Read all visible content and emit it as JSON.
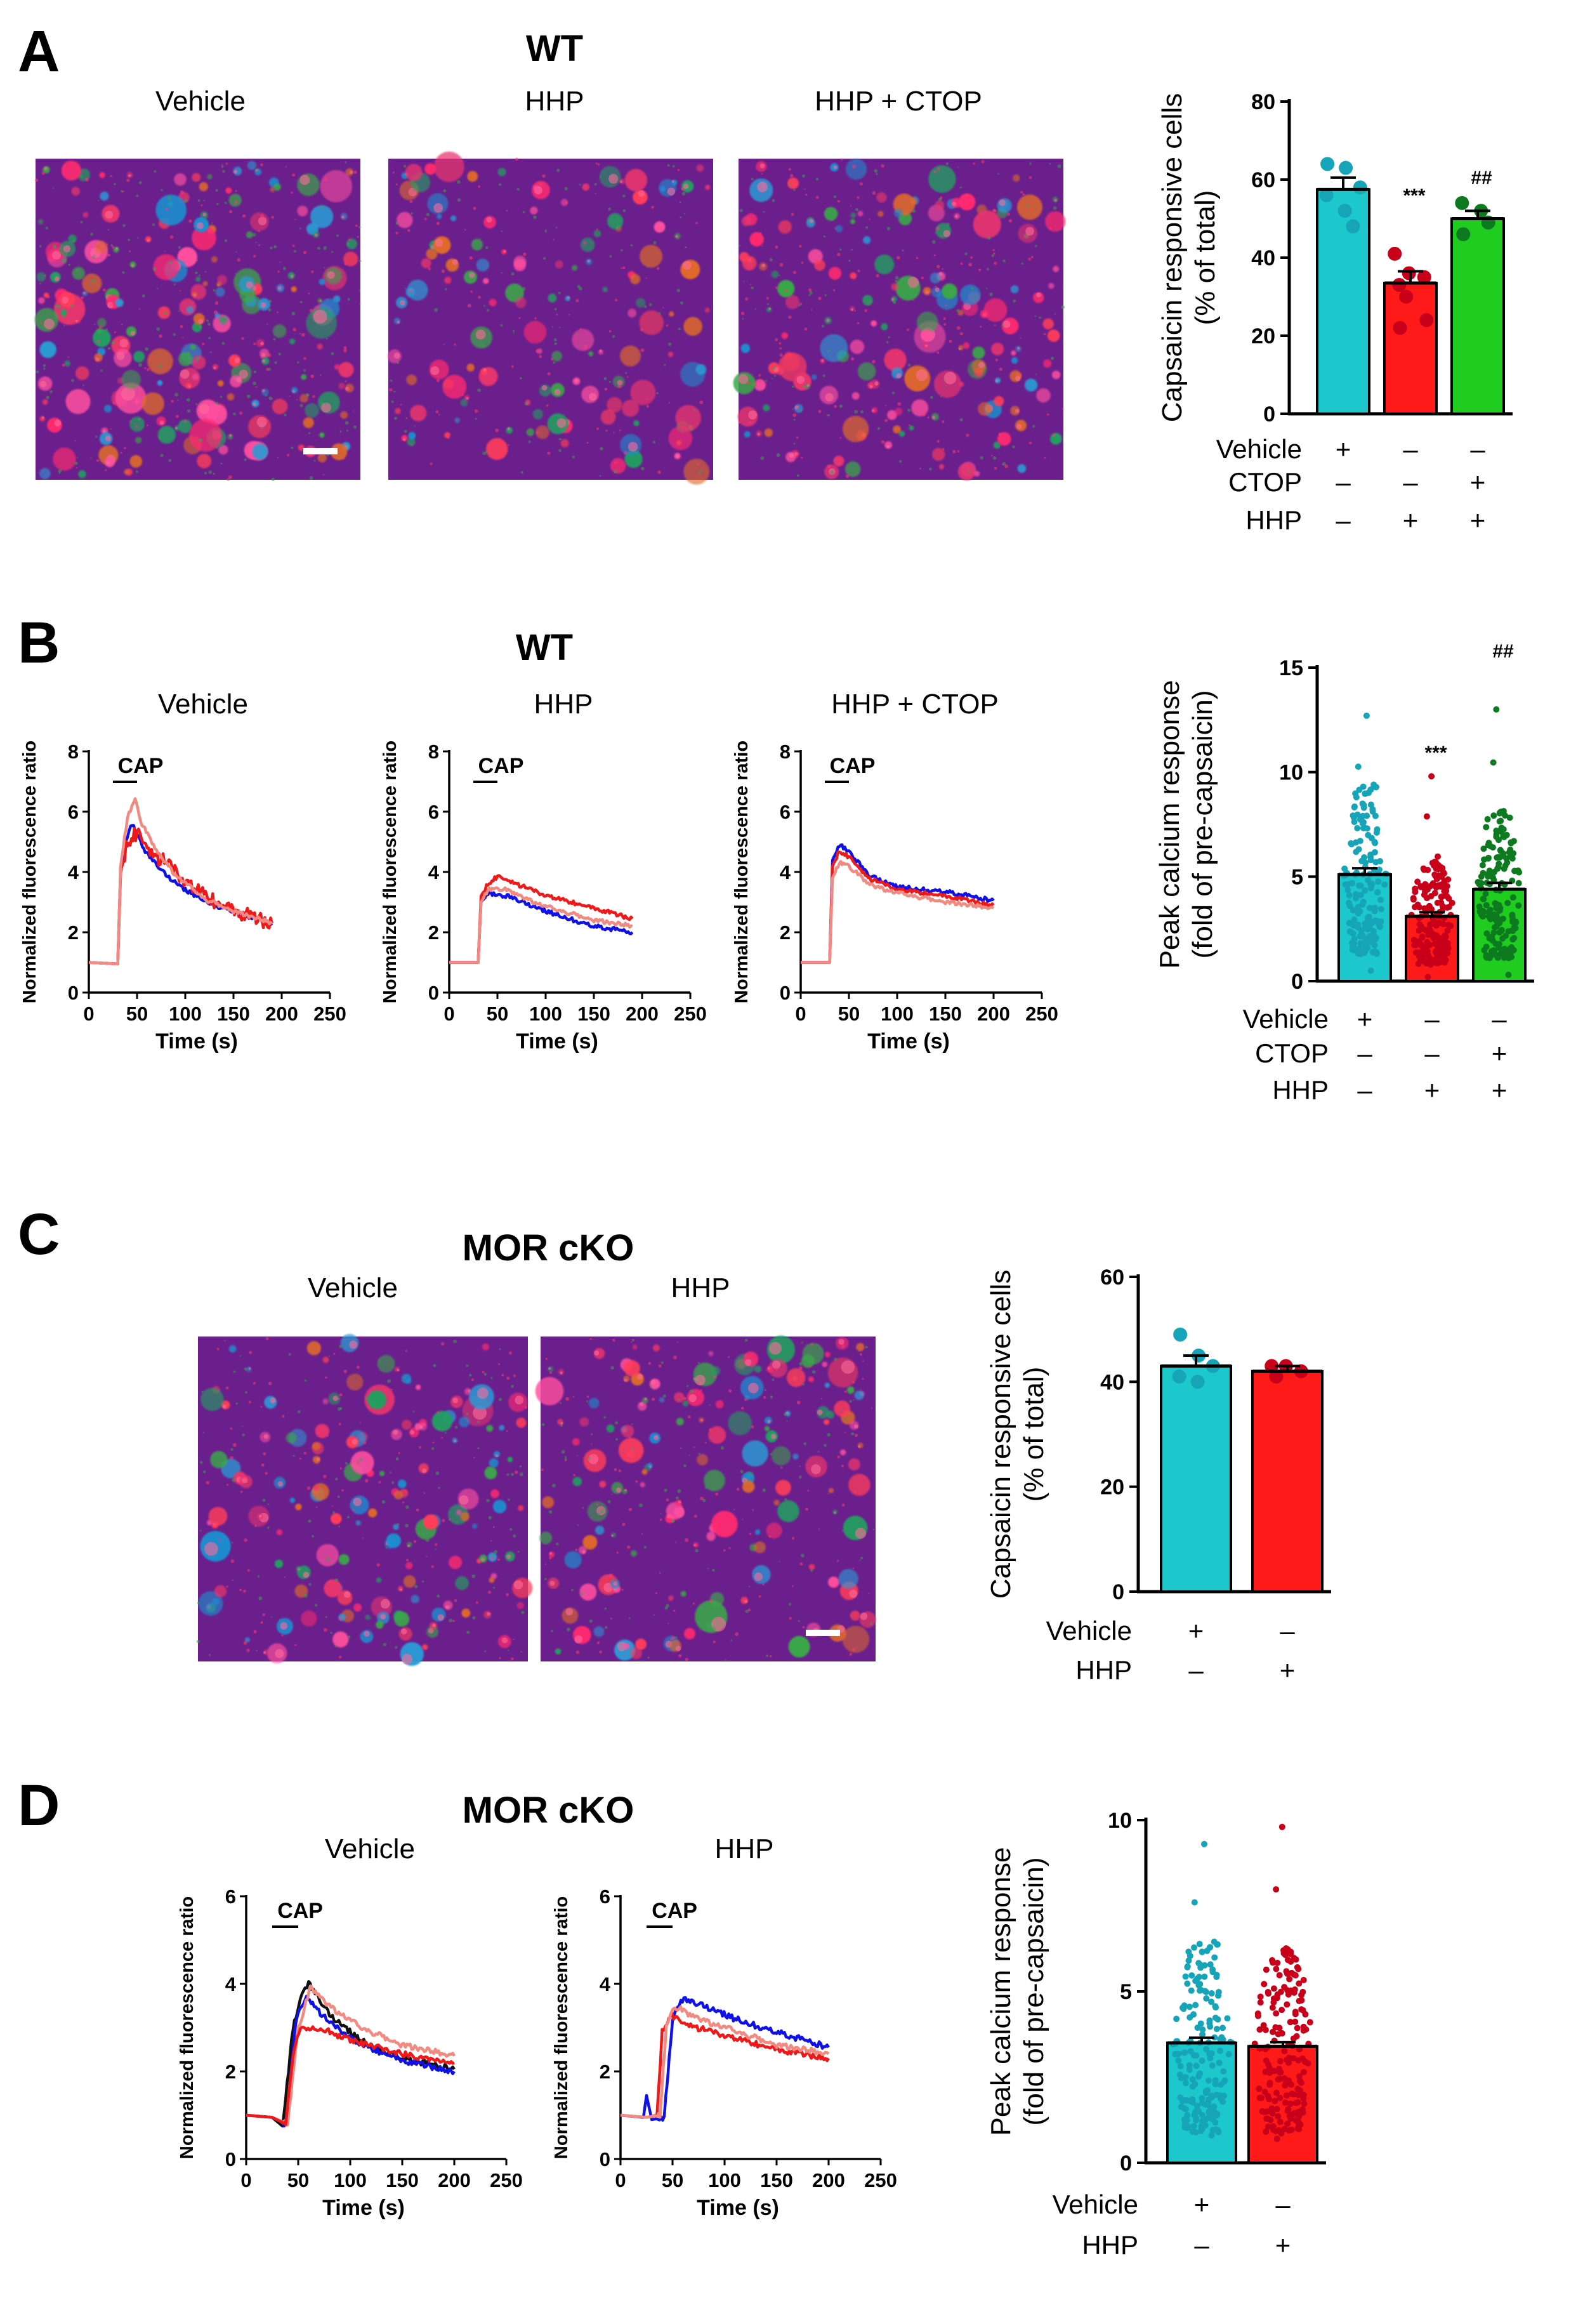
{
  "colors": {
    "vehicle": "#1cc8cc",
    "vehicle_dot": "#16a4b8",
    "hhp": "#ff1a1a",
    "hhp_dot": "#c8001a",
    "ctop": "#1fcc1f",
    "ctop_dot": "#0d7a1f",
    "blue_trace": "#1010e8",
    "red_trace": "#f01818",
    "pink_trace": "#f28a82",
    "black_trace": "#111111",
    "micro_bg": "#6a1f8c"
  },
  "panels": {
    "A": {
      "label": "A",
      "title": "WT",
      "images": [
        {
          "caption": "Vehicle",
          "scale_bar": true
        },
        {
          "caption": "HHP",
          "scale_bar": false
        },
        {
          "caption": "HHP + CTOP",
          "scale_bar": false
        }
      ],
      "chart": {
        "ylabel_line1": "Capsaicin responsive cells",
        "ylabel_line2": "(% of total)",
        "yticks": [
          "0",
          "20",
          "40",
          "60",
          "80"
        ],
        "row_labels": [
          "Vehicle",
          "CTOP",
          "HHP"
        ],
        "signs": [
          [
            "+",
            "–",
            "–"
          ],
          [
            "–",
            "–",
            "+"
          ],
          [
            "–",
            "+",
            "+"
          ]
        ],
        "sig_marks": [
          "",
          "***",
          "##"
        ]
      }
    },
    "B": {
      "label": "B",
      "title": "WT",
      "traces": [
        {
          "caption": "Vehicle",
          "cap_label": "CAP"
        },
        {
          "caption": "HHP",
          "cap_label": "CAP"
        },
        {
          "caption": "HHP + CTOP",
          "cap_label": "CAP"
        }
      ],
      "trace_ylabel": "Normalized fluorescence ratio",
      "trace_xlabel": "Time (s)",
      "trace_yticks": [
        "0",
        "2",
        "4",
        "6",
        "8"
      ],
      "trace_xticks": [
        "0",
        "50",
        "100",
        "150",
        "200",
        "250"
      ],
      "chart": {
        "ylabel_line1": "Peak calcium response",
        "ylabel_line2": "(fold of pre-capsaicin)",
        "yticks": [
          "0",
          "5",
          "10",
          "15"
        ],
        "row_labels": [
          "Vehicle",
          "CTOP",
          "HHP"
        ],
        "signs": [
          [
            "+",
            "–",
            "–"
          ],
          [
            "–",
            "–",
            "+"
          ],
          [
            "–",
            "+",
            "+"
          ]
        ],
        "sig_marks": [
          "",
          "***",
          "##"
        ]
      }
    },
    "C": {
      "label": "C",
      "title": "MOR cKO",
      "images": [
        {
          "caption": "Vehicle",
          "scale_bar": false
        },
        {
          "caption": "HHP",
          "scale_bar": true
        }
      ],
      "chart": {
        "ylabel_line1": "Capsaicin responsive cells",
        "ylabel_line2": "(% of total)",
        "yticks": [
          "0",
          "20",
          "40",
          "60"
        ],
        "row_labels": [
          "Vehicle",
          "HHP"
        ],
        "signs": [
          [
            "+",
            "–"
          ],
          [
            "–",
            "+"
          ]
        ]
      }
    },
    "D": {
      "label": "D",
      "title": "MOR cKO",
      "traces": [
        {
          "caption": "Vehicle",
          "cap_label": "CAP"
        },
        {
          "caption": "HHP",
          "cap_label": "CAP"
        }
      ],
      "trace_ylabel": "Normalized fluorescence ratio",
      "trace_xlabel": "Time (s)",
      "trace_yticks": [
        "0",
        "2",
        "4",
        "6"
      ],
      "trace_xticks": [
        "0",
        "50",
        "100",
        "150",
        "200",
        "250"
      ],
      "chart": {
        "ylabel_line1": "Peak calcium response",
        "ylabel_line2": "(fold of pre-capsaicin)",
        "yticks": [
          "0",
          "5",
          "10"
        ],
        "row_labels": [
          "Vehicle",
          "HHP"
        ],
        "signs": [
          [
            "+",
            "–"
          ],
          [
            "–",
            "+"
          ]
        ]
      }
    }
  },
  "chart_data": [
    {
      "type": "bar",
      "id": "A-bar",
      "title": "",
      "ylabel": "Capsaicin responsive cells (% of total)",
      "ylim": [
        0,
        80
      ],
      "categories": [
        "Vehicle",
        "HHP",
        "HHP + CTOP"
      ],
      "values": [
        57.5,
        33.5,
        50
      ],
      "errors": [
        3,
        3,
        2
      ],
      "points": [
        [
          64,
          63,
          58,
          56,
          52,
          48
        ],
        [
          41,
          36,
          35,
          33,
          30,
          24,
          22
        ],
        [
          54,
          52,
          49,
          46
        ]
      ]
    },
    {
      "type": "line",
      "id": "B-trace-vehicle",
      "xlabel": "Time (s)",
      "ylabel": "Normalized fluorescence ratio",
      "xlim": [
        0,
        250
      ],
      "ylim": [
        0,
        8
      ],
      "series": [
        {
          "name": "blue",
          "points": [
            [
              0,
              1
            ],
            [
              30,
              0.95
            ],
            [
              33,
              4.2
            ],
            [
              40,
              5.2
            ],
            [
              45,
              5.6
            ],
            [
              60,
              4.6
            ],
            [
              80,
              3.9
            ],
            [
              100,
              3.4
            ],
            [
              130,
              2.9
            ],
            [
              160,
              2.6
            ],
            [
              190,
              2.3
            ]
          ]
        },
        {
          "name": "red",
          "points": [
            [
              0,
              1
            ],
            [
              30,
              0.95
            ],
            [
              33,
              4.0
            ],
            [
              40,
              5.0
            ],
            [
              50,
              5.3
            ],
            [
              65,
              4.6
            ],
            [
              80,
              4.3
            ],
            [
              100,
              3.6
            ],
            [
              130,
              3.0
            ],
            [
              160,
              2.6
            ],
            [
              190,
              2.3
            ]
          ]
        },
        {
          "name": "pink",
          "points": [
            [
              0,
              1
            ],
            [
              30,
              0.95
            ],
            [
              33,
              4.2
            ],
            [
              40,
              5.8
            ],
            [
              48,
              6.4
            ],
            [
              55,
              5.6
            ],
            [
              70,
              4.7
            ],
            [
              90,
              3.9
            ],
            [
              120,
              3.1
            ],
            [
              150,
              2.7
            ],
            [
              190,
              2.3
            ]
          ]
        }
      ]
    },
    {
      "type": "line",
      "id": "B-trace-hhp",
      "xlabel": "Time (s)",
      "ylabel": "Normalized fluorescence ratio",
      "xlim": [
        0,
        250
      ],
      "ylim": [
        0,
        8
      ],
      "series": [
        {
          "name": "blue",
          "points": [
            [
              0,
              1
            ],
            [
              30,
              1
            ],
            [
              33,
              3.0
            ],
            [
              40,
              3.3
            ],
            [
              60,
              3.2
            ],
            [
              100,
              2.7
            ],
            [
              150,
              2.2
            ],
            [
              190,
              2.0
            ]
          ]
        },
        {
          "name": "red",
          "points": [
            [
              0,
              1
            ],
            [
              30,
              1
            ],
            [
              33,
              3.2
            ],
            [
              40,
              3.6
            ],
            [
              50,
              3.85
            ],
            [
              70,
              3.6
            ],
            [
              100,
              3.2
            ],
            [
              150,
              2.8
            ],
            [
              190,
              2.45
            ]
          ]
        },
        {
          "name": "pink",
          "points": [
            [
              0,
              1
            ],
            [
              30,
              1
            ],
            [
              33,
              3.0
            ],
            [
              40,
              3.4
            ],
            [
              55,
              3.45
            ],
            [
              100,
              2.85
            ],
            [
              150,
              2.4
            ],
            [
              190,
              2.2
            ]
          ]
        }
      ]
    },
    {
      "type": "line",
      "id": "B-trace-hhp-ctop",
      "xlabel": "Time (s)",
      "ylabel": "Normalized fluorescence ratio",
      "xlim": [
        0,
        250
      ],
      "ylim": [
        0,
        8
      ],
      "series": [
        {
          "name": "blue",
          "points": [
            [
              0,
              1
            ],
            [
              30,
              1
            ],
            [
              33,
              4.4
            ],
            [
              40,
              4.9
            ],
            [
              50,
              4.7
            ],
            [
              70,
              3.9
            ],
            [
              100,
              3.5
            ],
            [
              150,
              3.35
            ],
            [
              200,
              3.05
            ]
          ]
        },
        {
          "name": "red",
          "points": [
            [
              0,
              1
            ],
            [
              30,
              1
            ],
            [
              33,
              4.2
            ],
            [
              40,
              4.7
            ],
            [
              50,
              4.5
            ],
            [
              70,
              3.8
            ],
            [
              100,
              3.4
            ],
            [
              150,
              3.2
            ],
            [
              200,
              2.9
            ]
          ]
        },
        {
          "name": "pink",
          "points": [
            [
              0,
              1
            ],
            [
              30,
              1
            ],
            [
              33,
              3.8
            ],
            [
              40,
              4.3
            ],
            [
              50,
              4.2
            ],
            [
              70,
              3.6
            ],
            [
              100,
              3.3
            ],
            [
              150,
              3.0
            ],
            [
              200,
              2.8
            ]
          ]
        }
      ]
    },
    {
      "type": "scatter",
      "id": "B-bar",
      "ylabel": "Peak calcium response (fold of pre-capsaicin)",
      "ylim": [
        0,
        15
      ],
      "categories": [
        "Vehicle",
        "HHP",
        "HHP + CTOP"
      ],
      "values": [
        5.1,
        3.1,
        4.4
      ],
      "errors": [
        0.3,
        0.2,
        0.3
      ],
      "ranges": [
        [
          0.5,
          12.7
        ],
        [
          0.2,
          9.8
        ],
        [
          0.3,
          13.0
        ]
      ]
    },
    {
      "type": "bar",
      "id": "C-bar",
      "ylabel": "Capsaicin responsive cells (% of total)",
      "ylim": [
        0,
        60
      ],
      "categories": [
        "Vehicle",
        "HHP"
      ],
      "values": [
        43,
        42
      ],
      "errors": [
        2,
        1
      ],
      "points": [
        [
          49,
          45,
          43,
          41,
          40
        ],
        [
          43,
          43,
          42,
          41
        ]
      ]
    },
    {
      "type": "line",
      "id": "D-trace-vehicle",
      "xlabel": "Time (s)",
      "ylabel": "Normalized fluorescence ratio",
      "xlim": [
        0,
        250
      ],
      "ylim": [
        0,
        6
      ],
      "series": [
        {
          "name": "black",
          "points": [
            [
              0,
              1
            ],
            [
              25,
              0.95
            ],
            [
              35,
              0.75
            ],
            [
              45,
              3.0
            ],
            [
              55,
              3.9
            ],
            [
              60,
              4.0
            ],
            [
              80,
              3.3
            ],
            [
              110,
              2.7
            ],
            [
              150,
              2.3
            ],
            [
              200,
              2.05
            ]
          ]
        },
        {
          "name": "blue",
          "points": [
            [
              0,
              1
            ],
            [
              25,
              0.95
            ],
            [
              38,
              0.8
            ],
            [
              48,
              3.2
            ],
            [
              58,
              3.7
            ],
            [
              80,
              3.1
            ],
            [
              110,
              2.6
            ],
            [
              150,
              2.25
            ],
            [
              200,
              2.0
            ]
          ]
        },
        {
          "name": "pink",
          "points": [
            [
              0,
              1
            ],
            [
              25,
              0.95
            ],
            [
              40,
              0.8
            ],
            [
              50,
              3.0
            ],
            [
              62,
              3.9
            ],
            [
              80,
              3.5
            ],
            [
              110,
              3.0
            ],
            [
              150,
              2.6
            ],
            [
              200,
              2.35
            ]
          ]
        },
        {
          "name": "red",
          "points": [
            [
              0,
              1
            ],
            [
              25,
              0.95
            ],
            [
              38,
              0.8
            ],
            [
              45,
              2.4
            ],
            [
              52,
              3.0
            ],
            [
              70,
              3.0
            ],
            [
              100,
              2.7
            ],
            [
              150,
              2.4
            ],
            [
              200,
              2.2
            ]
          ]
        }
      ]
    },
    {
      "type": "line",
      "id": "D-trace-hhp",
      "xlabel": "Time (s)",
      "ylabel": "Normalized fluorescence ratio",
      "xlim": [
        0,
        250
      ],
      "ylim": [
        0,
        6
      ],
      "series": [
        {
          "name": "blue",
          "points": [
            [
              0,
              1
            ],
            [
              22,
              0.95
            ],
            [
              25,
              1.45
            ],
            [
              30,
              0.9
            ],
            [
              42,
              0.95
            ],
            [
              50,
              3.2
            ],
            [
              58,
              3.65
            ],
            [
              80,
              3.5
            ],
            [
              110,
              3.2
            ],
            [
              150,
              2.9
            ],
            [
              200,
              2.55
            ]
          ]
        },
        {
          "name": "red",
          "points": [
            [
              0,
              1
            ],
            [
              25,
              0.95
            ],
            [
              35,
              1.0
            ],
            [
              40,
              2.9
            ],
            [
              48,
              3.3
            ],
            [
              60,
              3.1
            ],
            [
              100,
              2.8
            ],
            [
              150,
              2.5
            ],
            [
              200,
              2.3
            ]
          ]
        },
        {
          "name": "pink",
          "points": [
            [
              0,
              1
            ],
            [
              25,
              0.95
            ],
            [
              38,
              1.0
            ],
            [
              44,
              3.0
            ],
            [
              52,
              3.5
            ],
            [
              65,
              3.3
            ],
            [
              100,
              3.0
            ],
            [
              150,
              2.6
            ],
            [
              200,
              2.4
            ]
          ]
        }
      ]
    },
    {
      "type": "scatter",
      "id": "D-bar",
      "ylabel": "Peak calcium response (fold of pre-capsaicin)",
      "ylim": [
        0,
        10
      ],
      "categories": [
        "Vehicle",
        "HHP"
      ],
      "values": [
        3.5,
        3.4
      ],
      "errors": [
        0.15,
        0.12
      ],
      "ranges": [
        [
          0.8,
          9.3
        ],
        [
          0.7,
          9.8
        ]
      ]
    }
  ]
}
